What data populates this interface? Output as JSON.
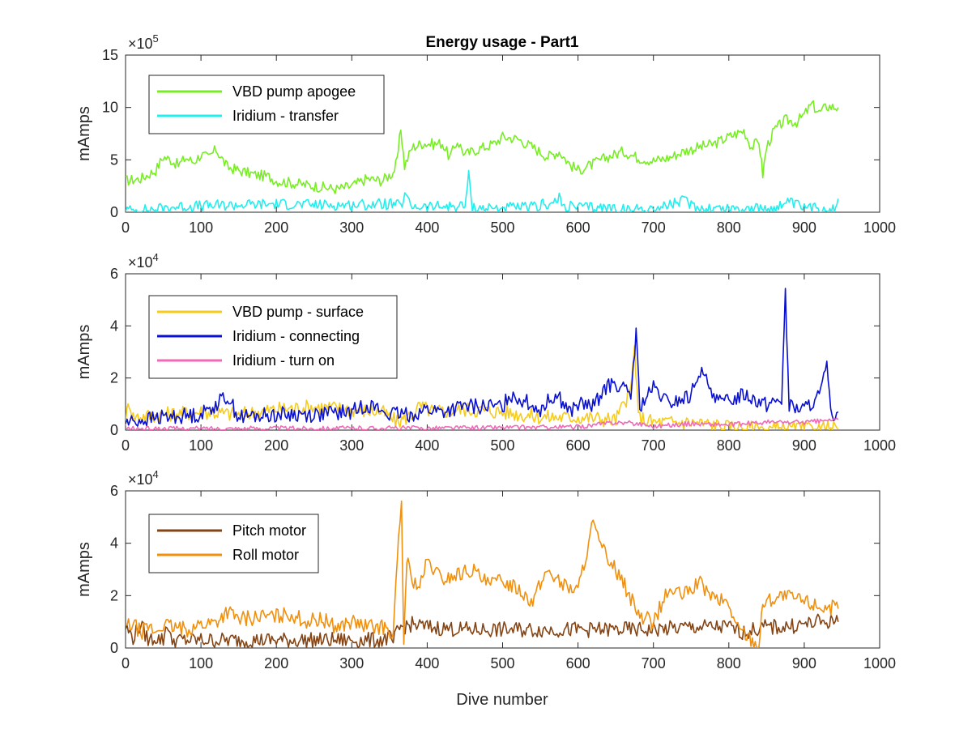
{
  "colors": {
    "axis": "#262626",
    "vbd_apogee": "#77EE22",
    "iridium_transfer": "#22EEEE",
    "vbd_surface": "#F6CB1A",
    "iridium_connecting": "#0A10D0",
    "iridium_turnon": "#F06AB8",
    "pitch": "#844414",
    "roll": "#F0900E"
  },
  "chart_data": [
    {
      "type": "line",
      "title": "Energy usage - Part1",
      "xlabel": "",
      "ylabel": "mAmps",
      "exponent_base": "10",
      "exponent": "5",
      "xlim": [
        0,
        1000
      ],
      "ylim": [
        0,
        15
      ],
      "xticks": [
        "0",
        "100",
        "200",
        "300",
        "400",
        "500",
        "600",
        "700",
        "800",
        "900",
        "1000"
      ],
      "yticks": [
        "0",
        "5",
        "10",
        "15"
      ],
      "grid": false,
      "legend_position": "top-left",
      "series": [
        {
          "name": "VBD pump apogee",
          "color_key": "vbd_apogee",
          "x": [
            0,
            20,
            40,
            50,
            60,
            70,
            80,
            90,
            100,
            110,
            120,
            135,
            150,
            170,
            190,
            200,
            220,
            240,
            260,
            280,
            300,
            320,
            340,
            355,
            360,
            365,
            370,
            380,
            395,
            410,
            420,
            430,
            440,
            450,
            460,
            470,
            480,
            490,
            500,
            520,
            540,
            560,
            575,
            590,
            600,
            620,
            640,
            660,
            680,
            700,
            720,
            740,
            760,
            780,
            800,
            820,
            830,
            840,
            845,
            850,
            860,
            875,
            890,
            900,
            910,
            920,
            930,
            945
          ],
          "y": [
            3.0,
            3.2,
            4.0,
            5.3,
            5.0,
            4.5,
            5.2,
            4.8,
            5.5,
            5.2,
            6.0,
            4.3,
            4.0,
            3.6,
            3.4,
            3.0,
            2.8,
            2.6,
            2.4,
            2.2,
            2.5,
            3.2,
            3.0,
            3.8,
            4.8,
            8.0,
            4.4,
            6.2,
            6.6,
            6.5,
            6.6,
            5.2,
            6.8,
            5.5,
            5.8,
            6.1,
            6.3,
            6.6,
            7.2,
            7.0,
            6.2,
            5.3,
            5.8,
            4.5,
            4.0,
            4.6,
            5.3,
            5.8,
            5.2,
            4.9,
            5.2,
            5.8,
            6.2,
            6.5,
            7.2,
            7.8,
            6.2,
            6.8,
            3.6,
            6.2,
            7.8,
            8.8,
            8.6,
            9.3,
            10.3,
            9.5,
            10.1,
            10.0
          ]
        },
        {
          "name": "Iridium - transfer",
          "color_key": "iridium_transfer",
          "x": [
            0,
            20,
            40,
            60,
            100,
            150,
            200,
            250,
            300,
            350,
            365,
            372,
            376,
            380,
            400,
            450,
            455,
            460,
            470,
            500,
            550,
            555,
            560,
            575,
            580,
            600,
            650,
            670,
            680,
            700,
            740,
            760,
            800,
            850,
            880,
            900,
            940,
            945
          ],
          "y": [
            0.2,
            0.2,
            0.3,
            0.5,
            0.6,
            0.7,
            0.8,
            0.7,
            0.7,
            0.8,
            0.6,
            1.7,
            0.8,
            0.6,
            0.5,
            0.6,
            3.5,
            0.5,
            0.4,
            0.4,
            0.5,
            1.2,
            0.5,
            1.3,
            0.6,
            0.5,
            0.4,
            0.1,
            0.4,
            0.3,
            1.1,
            0.4,
            0.4,
            0.3,
            0.9,
            0.4,
            0.4,
            1.3
          ]
        }
      ]
    },
    {
      "type": "line",
      "title": "",
      "xlabel": "",
      "ylabel": "mAmps",
      "exponent_base": "10",
      "exponent": "4",
      "xlim": [
        0,
        1000
      ],
      "ylim": [
        0,
        6
      ],
      "xticks": [
        "0",
        "100",
        "200",
        "300",
        "400",
        "500",
        "600",
        "700",
        "800",
        "900",
        "1000"
      ],
      "yticks": [
        "0",
        "2",
        "4",
        "6"
      ],
      "grid": false,
      "legend_position": "top-left",
      "series": [
        {
          "name": "VBD pump - surface",
          "color_key": "vbd_surface",
          "x": [
            0,
            5,
            10,
            50,
            100,
            150,
            200,
            250,
            300,
            340,
            360,
            380,
            390,
            410,
            450,
            500,
            550,
            600,
            650,
            670,
            675,
            680,
            700,
            750,
            780,
            800,
            850,
            900,
            945
          ],
          "y": [
            0.4,
            1.1,
            0.5,
            0.6,
            0.7,
            0.6,
            0.8,
            0.9,
            0.8,
            0.7,
            0.3,
            0.6,
            0.9,
            0.7,
            0.8,
            0.7,
            0.5,
            0.5,
            0.4,
            1.5,
            3.2,
            0.5,
            0.3,
            0.3,
            0.2,
            0.1,
            0.05,
            0.05,
            0.05
          ]
        },
        {
          "name": "Iridium - connecting",
          "color_key": "iridium_connecting",
          "x": [
            0,
            50,
            100,
            135,
            150,
            200,
            250,
            300,
            320,
            350,
            380,
            400,
            420,
            450,
            500,
            510,
            550,
            570,
            590,
            600,
            620,
            635,
            650,
            670,
            677,
            682,
            700,
            720,
            750,
            760,
            790,
            820,
            850,
            870,
            875,
            880,
            900,
            920,
            930,
            935,
            945
          ],
          "y": [
            0.3,
            0.5,
            0.6,
            1.3,
            0.5,
            0.6,
            0.6,
            0.7,
            1.0,
            0.6,
            0.6,
            0.8,
            0.7,
            0.9,
            0.9,
            1.4,
            0.8,
            1.4,
            0.7,
            1.0,
            0.9,
            1.6,
            1.8,
            1.3,
            3.7,
            0.9,
            1.6,
            1.0,
            1.3,
            2.3,
            1.0,
            1.4,
            1.0,
            1.2,
            5.2,
            0.9,
            0.8,
            1.3,
            2.4,
            0.6,
            0.7
          ]
        },
        {
          "name": "Iridium - turn on",
          "color_key": "iridium_turnon",
          "x": [
            0,
            100,
            200,
            300,
            400,
            500,
            600,
            650,
            680,
            700,
            750,
            800,
            850,
            900,
            945
          ],
          "y": [
            0.05,
            0.06,
            0.07,
            0.07,
            0.08,
            0.1,
            0.12,
            0.3,
            0.25,
            0.15,
            0.25,
            0.2,
            0.3,
            0.3,
            0.4
          ]
        }
      ]
    },
    {
      "type": "line",
      "title": "",
      "xlabel": "Dive number",
      "ylabel": "mAmps",
      "exponent_base": "10",
      "exponent": "4",
      "xlim": [
        0,
        1000
      ],
      "ylim": [
        0,
        6
      ],
      "xticks": [
        "0",
        "100",
        "200",
        "300",
        "400",
        "500",
        "600",
        "700",
        "800",
        "900",
        "1000"
      ],
      "yticks": [
        "0",
        "2",
        "4",
        "6"
      ],
      "grid": false,
      "legend_position": "top-left",
      "series": [
        {
          "name": "Pitch motor",
          "color_key": "pitch",
          "x": [
            0,
            10,
            20,
            30,
            40,
            50,
            55,
            60,
            100,
            150,
            200,
            250,
            300,
            340,
            350,
            355,
            360,
            365,
            380,
            400,
            450,
            500,
            550,
            600,
            650,
            700,
            750,
            800,
            820,
            850,
            870,
            900,
            920,
            945
          ],
          "y": [
            0.8,
            0.4,
            0.9,
            0.3,
            0.4,
            0.3,
            1.0,
            0.3,
            0.3,
            0.3,
            0.3,
            0.3,
            0.3,
            0.3,
            0.4,
            0.2,
            0.6,
            0.8,
            0.9,
            0.8,
            0.7,
            0.7,
            0.7,
            0.7,
            0.7,
            0.7,
            0.8,
            0.8,
            0.6,
            0.8,
            0.8,
            0.9,
            1.0,
            1.0
          ]
        },
        {
          "name": "Roll motor",
          "color_key": "roll",
          "x": [
            0,
            10,
            20,
            30,
            40,
            50,
            60,
            80,
            100,
            120,
            135,
            150,
            180,
            200,
            220,
            240,
            260,
            280,
            300,
            320,
            340,
            355,
            362,
            366,
            369,
            373,
            378,
            390,
            400,
            420,
            440,
            460,
            480,
            500,
            520,
            540,
            560,
            580,
            600,
            620,
            630,
            640,
            650,
            660,
            680,
            700,
            720,
            740,
            760,
            780,
            800,
            810,
            820,
            835,
            840,
            845,
            850,
            870,
            900,
            920,
            945
          ],
          "y": [
            0.8,
            0.9,
            0.6,
            0.8,
            0.6,
            0.9,
            0.8,
            0.7,
            0.9,
            1.0,
            1.4,
            1.1,
            1.2,
            1.2,
            1.3,
            1.0,
            1.1,
            0.8,
            1.0,
            0.8,
            0.8,
            0.6,
            4.0,
            5.5,
            0.2,
            3.5,
            2.7,
            2.3,
            3.3,
            2.6,
            2.8,
            3.0,
            2.4,
            2.6,
            2.3,
            1.8,
            3.0,
            2.4,
            2.2,
            4.8,
            3.8,
            3.5,
            3.0,
            2.5,
            1.3,
            1.0,
            2.2,
            2.0,
            2.5,
            1.9,
            1.7,
            0.8,
            0.6,
            0.2,
            0.0,
            1.7,
            1.8,
            2.0,
            1.8,
            1.6,
            1.5
          ]
        }
      ]
    }
  ]
}
